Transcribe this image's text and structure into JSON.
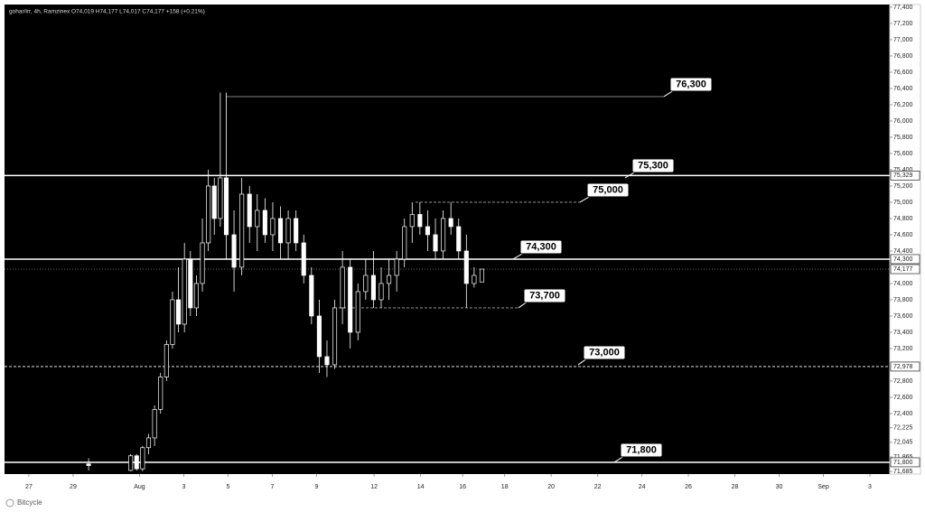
{
  "chart_data": {
    "type": "candlestick",
    "title": "gohar/irr, 4h, Ramzinex O74,019 H74,177 L74,017 C74,177 +158 (+0.21%)",
    "footer": "Bitcycle",
    "x": [
      29.7,
      31.6,
      31.87,
      32.14,
      32.41,
      32.68,
      32.95,
      33.22,
      33.49,
      33.76,
      34.03,
      34.3,
      34.57,
      34.84,
      35.11,
      35.38,
      35.65,
      35.92,
      36.27,
      36.62,
      36.97,
      37.32,
      37.67,
      38.02,
      38.37,
      38.72,
      39.07,
      39.42,
      39.77,
      40.12,
      40.47,
      40.82,
      41.17,
      41.52,
      41.87,
      42.22,
      42.57,
      42.92,
      43.27,
      43.62,
      43.97,
      44.32,
      44.67,
      45.02,
      45.37,
      45.72,
      46.07,
      46.42,
      46.77,
      47.12,
      47.47
    ],
    "open": [
      71780,
      71700,
      71880,
      71720,
      71980,
      72100,
      72450,
      72850,
      73250,
      73800,
      73500,
      74300,
      73700,
      74000,
      74500,
      75200,
      74800,
      75300,
      74600,
      74200,
      75100,
      74700,
      74900,
      74600,
      74800,
      74500,
      74800,
      74500,
      74100,
      73600,
      73100,
      73000,
      73700,
      74200,
      73400,
      73900,
      74100,
      73800,
      74000,
      74100,
      74300,
      74700,
      74850,
      74700,
      74600,
      74400,
      74800,
      74700,
      74400,
      74000,
      74019
    ],
    "high": [
      71850,
      71900,
      71900,
      72000,
      72150,
      72500,
      72900,
      73300,
      73900,
      74200,
      74500,
      74400,
      74100,
      74800,
      75400,
      75300,
      76350,
      76350,
      74900,
      75300,
      75200,
      75100,
      75050,
      75000,
      74950,
      74900,
      74900,
      74600,
      74200,
      73800,
      73300,
      73800,
      74400,
      74300,
      74000,
      74300,
      74400,
      74200,
      74300,
      74400,
      74800,
      75000,
      75000,
      74900,
      74800,
      74900,
      75000,
      74800,
      74600,
      74200,
      74177
    ],
    "low": [
      71700,
      71690,
      71700,
      71690,
      71900,
      72000,
      72400,
      72800,
      73200,
      73400,
      73400,
      73600,
      73600,
      73900,
      74400,
      74600,
      74700,
      74300,
      73900,
      74100,
      74500,
      74400,
      74500,
      74400,
      74300,
      74300,
      74400,
      74000,
      73500,
      72900,
      72850,
      72950,
      73500,
      73200,
      73300,
      73800,
      73700,
      73700,
      73800,
      73900,
      74200,
      74500,
      74600,
      74400,
      74300,
      74300,
      74600,
      74300,
      73700,
      73950,
      74017
    ],
    "close": [
      71760,
      71880,
      71720,
      71980,
      72100,
      72450,
      72850,
      73250,
      73800,
      73500,
      74300,
      73700,
      74000,
      74500,
      75200,
      74800,
      75300,
      74600,
      74200,
      75100,
      74700,
      74900,
      74600,
      74800,
      74500,
      74800,
      74500,
      74100,
      73600,
      73100,
      73000,
      73700,
      74200,
      73400,
      73900,
      74100,
      73800,
      74000,
      74100,
      74300,
      74700,
      74850,
      74700,
      74600,
      74400,
      74800,
      74700,
      74400,
      74000,
      74100,
      74177
    ],
    "xlim": [
      25.9,
      65.9
    ],
    "xticks": [
      {
        "value": 27,
        "label": "27"
      },
      {
        "value": 29,
        "label": "29"
      },
      {
        "value": 32,
        "label": "Aug"
      },
      {
        "value": 34,
        "label": "3"
      },
      {
        "value": 36,
        "label": "5"
      },
      {
        "value": 38,
        "label": "7"
      },
      {
        "value": 40,
        "label": "9"
      },
      {
        "value": 42.6,
        "label": "12"
      },
      {
        "value": 44.7,
        "label": "14"
      },
      {
        "value": 46.6,
        "label": "16"
      },
      {
        "value": 48.5,
        "label": "18"
      },
      {
        "value": 50.6,
        "label": "20"
      },
      {
        "value": 52.7,
        "label": "22"
      },
      {
        "value": 54.7,
        "label": "24"
      },
      {
        "value": 56.8,
        "label": "26"
      },
      {
        "value": 58.9,
        "label": "28"
      },
      {
        "value": 60.9,
        "label": "30"
      },
      {
        "value": 62.9,
        "label": "Sep"
      },
      {
        "value": 65,
        "label": "3"
      }
    ],
    "ylim": [
      71655,
      77433
    ],
    "yticks": [
      {
        "value": 77400,
        "label": "77,400"
      },
      {
        "value": 77200,
        "label": "77,200"
      },
      {
        "value": 77000,
        "label": "77,000"
      },
      {
        "value": 76800,
        "label": "76,800"
      },
      {
        "value": 76600,
        "label": "76,600"
      },
      {
        "value": 76400,
        "label": "76,400"
      },
      {
        "value": 76200,
        "label": "76,200"
      },
      {
        "value": 76000,
        "label": "76,000"
      },
      {
        "value": 75800,
        "label": "75,800"
      },
      {
        "value": 75600,
        "label": "75,600"
      },
      {
        "value": 75400,
        "label": "75,400"
      },
      {
        "value": 75200,
        "label": "75,200"
      },
      {
        "value": 75000,
        "label": "75,000"
      },
      {
        "value": 74800,
        "label": "74,800"
      },
      {
        "value": 74600,
        "label": "74,600"
      },
      {
        "value": 74400,
        "label": "74,400"
      },
      {
        "value": 74000,
        "label": "74,000"
      },
      {
        "value": 73800,
        "label": "73,800"
      },
      {
        "value": 73600,
        "label": "73,600"
      },
      {
        "value": 73400,
        "label": "73,400"
      },
      {
        "value": 73200,
        "label": "73,200"
      },
      {
        "value": 72800,
        "label": "72,800"
      },
      {
        "value": 72600,
        "label": "72,600"
      },
      {
        "value": 72400,
        "label": "72,400"
      },
      {
        "value": 72225,
        "label": "72,225"
      },
      {
        "value": 72045,
        "label": "72,045"
      },
      {
        "value": 71865,
        "label": "71,865"
      },
      {
        "value": 71685,
        "label": "71,685"
      }
    ],
    "levels": [
      {
        "value": 75329,
        "label": "75,329",
        "style": "solid"
      },
      {
        "value": 74300,
        "label": "74,300",
        "style": "solid"
      },
      {
        "value": 74177,
        "label": "74,177",
        "style": "dotted"
      },
      {
        "value": 72978,
        "label": "72,978",
        "style": "dashed"
      },
      {
        "value": 71800,
        "label": "71,800",
        "style": "solid"
      }
    ],
    "callouts": [
      {
        "value": 76300,
        "label": "76,300"
      },
      {
        "value": 75300,
        "label": "75,300"
      },
      {
        "value": 75000,
        "label": "75,000"
      },
      {
        "value": 74300,
        "label": "74,300"
      },
      {
        "value": 73700,
        "label": "73,700"
      },
      {
        "value": 73000,
        "label": "73,000"
      },
      {
        "value": 71800,
        "label": "71,800"
      }
    ]
  }
}
